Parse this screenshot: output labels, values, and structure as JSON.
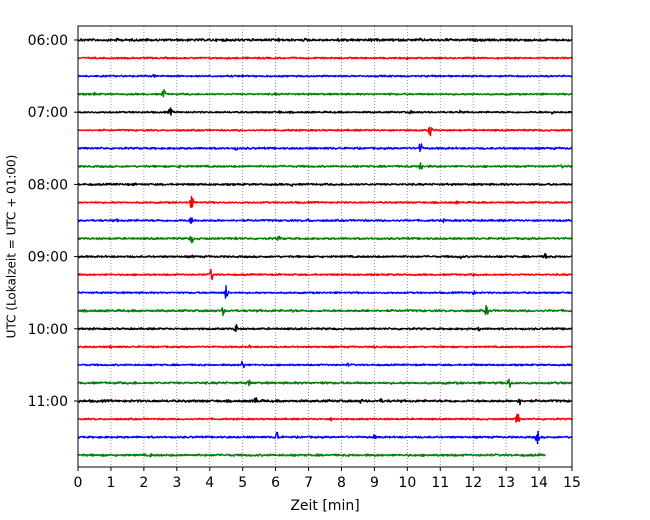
{
  "chart_data": {
    "type": "line",
    "xlabel": "Zeit  [min]",
    "ylabel": "UTC (Lokalzeit = UTC + 01:00)",
    "xlim": [
      0,
      15
    ],
    "x_ticks": [
      0,
      1,
      2,
      3,
      4,
      5,
      6,
      7,
      8,
      9,
      10,
      11,
      12,
      13,
      14,
      15
    ],
    "grid": "vertical-dotted",
    "row_interval_minutes": 15,
    "colors": [
      "#000000",
      "#ff0000",
      "#0000ff",
      "#008000"
    ],
    "y_ticks": [
      {
        "label": "06:00",
        "row": 0
      },
      {
        "label": "07:00",
        "row": 4
      },
      {
        "label": "08:00",
        "row": 8
      },
      {
        "label": "09:00",
        "row": 12
      },
      {
        "label": "10:00",
        "row": 16
      },
      {
        "label": "11:00",
        "row": 20
      }
    ],
    "series": [
      {
        "start": "06:00",
        "color": "#000000",
        "end_min": 15,
        "noise": 1.0,
        "spikes": [
          [
            0.1,
            2
          ],
          [
            1.2,
            2
          ],
          [
            2.1,
            2
          ],
          [
            4.4,
            2
          ],
          [
            6.1,
            2
          ],
          [
            6.9,
            2
          ],
          [
            7.9,
            2
          ],
          [
            8.2,
            2
          ],
          [
            8.9,
            2
          ],
          [
            9.6,
            2
          ],
          [
            10.4,
            2
          ],
          [
            11.2,
            2
          ],
          [
            12.1,
            2
          ],
          [
            13.4,
            2
          ],
          [
            14.0,
            2
          ]
        ]
      },
      {
        "start": "06:15",
        "color": "#ff0000",
        "end_min": 15,
        "noise": 0.7,
        "spikes": [
          [
            10.0,
            2
          ]
        ]
      },
      {
        "start": "06:30",
        "color": "#0000ff",
        "end_min": 15,
        "noise": 0.7,
        "spikes": [
          [
            2.3,
            2
          ],
          [
            5.0,
            1.5
          ]
        ]
      },
      {
        "start": "06:45",
        "color": "#008000",
        "end_min": 15,
        "noise": 0.7,
        "spikes": [
          [
            0.5,
            2
          ],
          [
            2.6,
            6
          ],
          [
            6.0,
            1.5
          ],
          [
            9.5,
            1.5
          ],
          [
            12.0,
            1.5
          ]
        ]
      },
      {
        "start": "07:00",
        "color": "#000000",
        "end_min": 15,
        "noise": 0.7,
        "spikes": [
          [
            2.8,
            5
          ],
          [
            6.1,
            2
          ],
          [
            10.1,
            2
          ],
          [
            11.6,
            2
          ],
          [
            14.4,
            2
          ]
        ]
      },
      {
        "start": "07:15",
        "color": "#ff0000",
        "end_min": 15,
        "noise": 0.7,
        "spikes": [
          [
            10.7,
            7
          ],
          [
            6.5,
            1.5
          ]
        ]
      },
      {
        "start": "07:30",
        "color": "#0000ff",
        "end_min": 15,
        "noise": 0.8,
        "spikes": [
          [
            4.8,
            2
          ],
          [
            10.4,
            7
          ],
          [
            12.9,
            2
          ]
        ]
      },
      {
        "start": "07:45",
        "color": "#008000",
        "end_min": 15,
        "noise": 0.8,
        "spikes": [
          [
            3.1,
            2
          ],
          [
            10.4,
            6
          ],
          [
            14.7,
            2
          ]
        ]
      },
      {
        "start": "08:00",
        "color": "#000000",
        "end_min": 15,
        "noise": 0.8,
        "spikes": [
          [
            1.7,
            2
          ],
          [
            6.5,
            2
          ],
          [
            12.3,
            2
          ]
        ]
      },
      {
        "start": "08:15",
        "color": "#ff0000",
        "end_min": 15,
        "noise": 0.7,
        "spikes": [
          [
            3.45,
            7
          ],
          [
            11.5,
            2
          ]
        ]
      },
      {
        "start": "08:30",
        "color": "#0000ff",
        "end_min": 15,
        "noise": 0.8,
        "spikes": [
          [
            1.2,
            2
          ],
          [
            3.45,
            5
          ],
          [
            7.0,
            2
          ],
          [
            11.1,
            2
          ]
        ]
      },
      {
        "start": "08:45",
        "color": "#008000",
        "end_min": 15,
        "noise": 0.8,
        "spikes": [
          [
            3.45,
            5
          ],
          [
            4.8,
            2
          ],
          [
            6.1,
            3
          ]
        ]
      },
      {
        "start": "09:00",
        "color": "#000000",
        "end_min": 15,
        "noise": 0.8,
        "spikes": [
          [
            3.5,
            2
          ],
          [
            11.6,
            3
          ],
          [
            14.2,
            4
          ]
        ]
      },
      {
        "start": "09:15",
        "color": "#ff0000",
        "end_min": 15,
        "noise": 0.7,
        "spikes": [
          [
            4.05,
            7
          ],
          [
            12.0,
            2
          ]
        ]
      },
      {
        "start": "09:30",
        "color": "#0000ff",
        "end_min": 15,
        "noise": 0.7,
        "spikes": [
          [
            4.5,
            8
          ],
          [
            12.0,
            3
          ]
        ]
      },
      {
        "start": "09:45",
        "color": "#008000",
        "end_min": 15,
        "noise": 0.9,
        "spikes": [
          [
            4.4,
            5
          ],
          [
            6.5,
            2
          ],
          [
            8.8,
            2
          ],
          [
            12.4,
            6
          ]
        ]
      },
      {
        "start": "10:00",
        "color": "#000000",
        "end_min": 15,
        "noise": 0.8,
        "spikes": [
          [
            4.8,
            5
          ],
          [
            12.2,
            3
          ],
          [
            14.8,
            2
          ]
        ]
      },
      {
        "start": "10:15",
        "color": "#ff0000",
        "end_min": 15,
        "noise": 0.7,
        "spikes": [
          [
            1.0,
            2
          ],
          [
            5.2,
            2
          ],
          [
            9.0,
            2
          ],
          [
            14.1,
            2
          ]
        ]
      },
      {
        "start": "10:30",
        "color": "#0000ff",
        "end_min": 15,
        "noise": 0.7,
        "spikes": [
          [
            5.0,
            5
          ],
          [
            8.2,
            2
          ],
          [
            12.0,
            2
          ]
        ]
      },
      {
        "start": "10:45",
        "color": "#008000",
        "end_min": 15,
        "noise": 0.9,
        "spikes": [
          [
            1.7,
            2
          ],
          [
            5.2,
            4
          ],
          [
            7.4,
            2
          ],
          [
            13.1,
            7
          ]
        ]
      },
      {
        "start": "11:00",
        "color": "#000000",
        "end_min": 15,
        "noise": 1.0,
        "spikes": [
          [
            5.4,
            5
          ],
          [
            8.6,
            3
          ],
          [
            9.2,
            3
          ],
          [
            13.4,
            5
          ],
          [
            11.3,
            2
          ]
        ]
      },
      {
        "start": "11:15",
        "color": "#ff0000",
        "end_min": 15,
        "noise": 0.7,
        "spikes": [
          [
            13.35,
            7
          ],
          [
            7.7,
            2
          ]
        ]
      },
      {
        "start": "11:30",
        "color": "#0000ff",
        "end_min": 15,
        "noise": 0.8,
        "spikes": [
          [
            6.05,
            8
          ],
          [
            9.0,
            3
          ],
          [
            13.95,
            8
          ]
        ]
      },
      {
        "start": "11:45",
        "color": "#008000",
        "end_min": 14.2,
        "noise": 0.9,
        "spikes": [
          [
            2.2,
            2
          ],
          [
            11.2,
            2
          ]
        ]
      }
    ]
  }
}
